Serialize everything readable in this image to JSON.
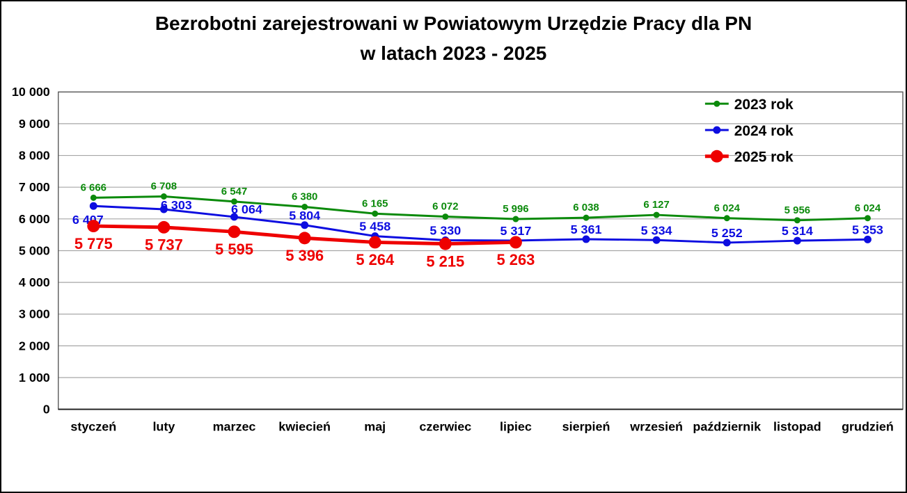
{
  "page": {
    "title_line1": "Bezrobotni zarejestrowani w Powiatowym Urzędzie Pracy dla PN",
    "title_line2": "w latach 2023 - 2025"
  },
  "chart_data": {
    "type": "line",
    "title": "Bezrobotni zarejestrowani w Powiatowym Urzędzie Pracy dla PN w latach 2023 - 2025",
    "xlabel": "",
    "ylabel": "",
    "ylim": [
      0,
      10000
    ],
    "grid": true,
    "legend_position": "top-right",
    "categories": [
      "styczeń",
      "luty",
      "marzec",
      "kwiecień",
      "maj",
      "czerwiec",
      "lipiec",
      "sierpień",
      "wrzesień",
      "październik",
      "listopad",
      "grudzień"
    ],
    "yticks": [
      {
        "value": 0,
        "label": "0"
      },
      {
        "value": 1000,
        "label": "1 000"
      },
      {
        "value": 2000,
        "label": "2 000"
      },
      {
        "value": 3000,
        "label": "3 000"
      },
      {
        "value": 4000,
        "label": "4 000"
      },
      {
        "value": 5000,
        "label": "5 000"
      },
      {
        "value": 6000,
        "label": "6 000"
      },
      {
        "value": 7000,
        "label": "7 000"
      },
      {
        "value": 8000,
        "label": "8 000"
      },
      {
        "value": 9000,
        "label": "9 000"
      },
      {
        "value": 10000,
        "label": "10 000"
      }
    ],
    "series": [
      {
        "name": "2023 rok",
        "color": "#0b8a0b",
        "values": [
          6666,
          6708,
          6547,
          6380,
          6165,
          6072,
          5996,
          6038,
          6127,
          6024,
          5956,
          6024
        ],
        "labels": [
          "6 666",
          "6 708",
          "6 547",
          "6 380",
          "6 165",
          "6 072",
          "5 996",
          "6 038",
          "6 127",
          "6 024",
          "5 956",
          "6 024"
        ],
        "line_width": 3,
        "marker_radius": 4.5,
        "label_font_size": 15,
        "label_placement": "above",
        "label_dy": -10,
        "label_offsets": {}
      },
      {
        "name": "2024 rok",
        "color": "#0d0de0",
        "values": [
          6407,
          6303,
          6064,
          5804,
          5458,
          5330,
          5317,
          5361,
          5334,
          5252,
          5314,
          5353
        ],
        "labels": [
          "6 407",
          "6 303",
          "6 064",
          "5 804",
          "5 458",
          "5 330",
          "5 317",
          "5 361",
          "5 334",
          "5 252",
          "5 314",
          "5 353"
        ],
        "line_width": 3,
        "marker_radius": 5.5,
        "label_font_size": 18,
        "label_placement": "above",
        "label_dy": -8,
        "label_offsets": {
          "0": {
            "dx": -8,
            "dy": 26
          },
          "1": {
            "dx": 18,
            "dy": 0
          },
          "2": {
            "dx": 18,
            "dy": -5
          }
        }
      },
      {
        "name": "2025 rok",
        "color": "#ee0000",
        "values": [
          5775,
          5737,
          5595,
          5396,
          5264,
          5215,
          5263,
          null,
          null,
          null,
          null,
          null
        ],
        "labels": [
          "5 775",
          "5 737",
          "5 595",
          "5 396",
          "5 264",
          "5 215",
          "5 263"
        ],
        "line_width": 5,
        "marker_radius": 9,
        "label_font_size": 22,
        "label_placement": "below",
        "label_dy": 33,
        "label_offsets": {}
      }
    ]
  }
}
